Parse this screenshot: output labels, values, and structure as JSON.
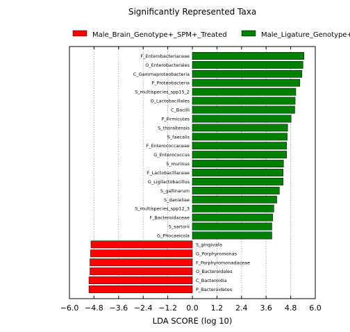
{
  "chart_data": {
    "type": "bar",
    "orientation": "horizontal",
    "title": "Significantly Represented Taxa",
    "xlabel": "LDA SCORE (log 10)",
    "ylabel": "",
    "xlim": [
      -6.0,
      6.0
    ],
    "xticks": [
      -6.0,
      -4.8,
      -3.6,
      -2.4,
      -1.2,
      0.0,
      1.2,
      2.4,
      3.6,
      4.8,
      6.0
    ],
    "xtick_labels": [
      "−6.0",
      "−4.8",
      "−3.6",
      "−2.4",
      "−1.2",
      "0.0",
      "1.2",
      "2.4",
      "3.6",
      "4.8",
      "6.0"
    ],
    "grid": "vertical dotted",
    "legend_position": "top",
    "series": [
      {
        "name": "Male_Brain_Genotype+_SPM+_Treated",
        "color": "#ff0000",
        "categories": [
          "S_gingivalis",
          "G_Porphyromonas",
          "F_Porphyromonadaceae",
          "O_Bacteroidales",
          "C_Bacteroidia",
          "P_Bacteroidetes"
        ],
        "values": [
          -4.95,
          -4.97,
          -5.0,
          -5.0,
          -5.05,
          -5.05
        ]
      },
      {
        "name": "Male_Ligature_Genotype+",
        "color": "#008000",
        "categories": [
          "F_Enterobacteriaceae",
          "O_Enterobacterales",
          "C_Gammaproteobacteria",
          "P_Proteobacteria",
          "S_multispecies_spp15_2",
          "O_Lactobacillales",
          "C_Bacilli",
          "P_Firmicutes",
          "S_thoraltensis",
          "S_faecalis",
          "F_Enterococcaceae",
          "G_Enterococcus",
          "S_murinus",
          "F_Lactobacillaceae",
          "G_Ligilactobacillus",
          "S_gallinarum",
          "S_danieliae",
          "S_multispecies_spp12_3",
          "F_Bacteroidaceae",
          "S_sartorii",
          "G_Phocaeicola"
        ],
        "values": [
          5.45,
          5.4,
          5.35,
          5.25,
          5.05,
          5.02,
          5.0,
          4.82,
          4.65,
          4.63,
          4.6,
          4.6,
          4.45,
          4.43,
          4.43,
          4.25,
          4.12,
          3.98,
          3.92,
          3.88,
          3.88
        ]
      }
    ]
  }
}
